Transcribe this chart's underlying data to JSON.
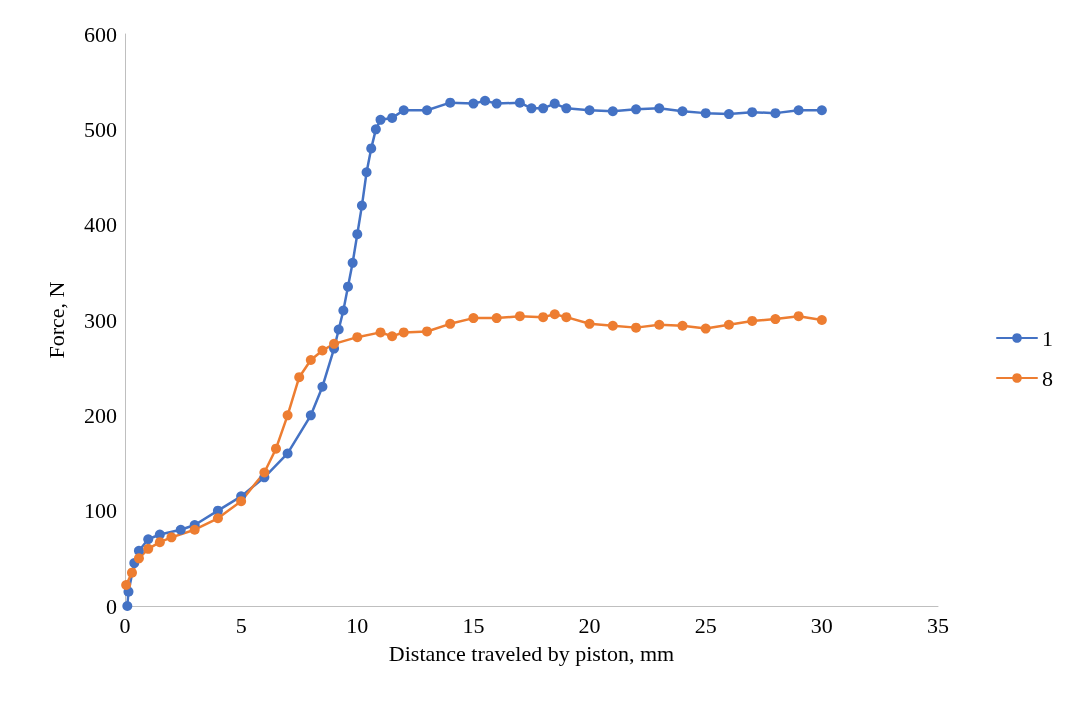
{
  "chart_data": {
    "type": "line",
    "xlabel": "Distance traveled by piston, mm",
    "ylabel": "Force, N",
    "xlim": [
      0,
      35
    ],
    "xticks": [
      0,
      5,
      10,
      15,
      20,
      25,
      30,
      35
    ],
    "ylim": [
      0,
      600
    ],
    "yticks": [
      0,
      100,
      200,
      300,
      400,
      500,
      600
    ],
    "grid": false,
    "legend": "right",
    "marker": "circle",
    "line_style": "solid",
    "series": [
      {
        "name": "1",
        "color": "#4472c4",
        "x": [
          0.1,
          0.15,
          0.4,
          0.6,
          1,
          1.5,
          2.4,
          3,
          4,
          5,
          6,
          7,
          8,
          8.5,
          9,
          9.2,
          9.4,
          9.6,
          9.8,
          10,
          10.2,
          10.4,
          10.6,
          10.8,
          11,
          11.5,
          12,
          13,
          14,
          15,
          15.5,
          16,
          17,
          17.5,
          18,
          18.5,
          19,
          20,
          21,
          22,
          23,
          24,
          25,
          26,
          27,
          28,
          29,
          30
        ],
        "values": [
          0,
          15,
          45,
          58,
          70,
          75,
          80,
          85,
          100,
          115,
          135,
          160,
          200,
          230,
          270,
          290,
          310,
          335,
          360,
          390,
          420,
          455,
          480,
          500,
          510,
          512,
          520,
          520,
          528,
          527,
          530,
          527,
          528,
          522,
          522,
          527,
          522,
          520,
          519,
          521,
          522,
          519,
          517,
          516,
          518,
          517,
          520,
          520
        ]
      },
      {
        "name": "8",
        "color": "#ed7d31",
        "x": [
          0.05,
          0.3,
          0.6,
          1,
          1.5,
          2,
          3,
          4,
          5,
          6,
          6.5,
          7,
          7.5,
          8,
          8.5,
          9,
          10,
          11,
          11.5,
          12,
          13,
          14,
          15,
          16,
          17,
          18,
          18.5,
          19,
          20,
          21,
          22,
          23,
          24,
          25,
          26,
          27,
          28,
          29,
          30
        ],
        "values": [
          22,
          35,
          50,
          60,
          67,
          72,
          80,
          92,
          110,
          140,
          165,
          200,
          240,
          258,
          268,
          275,
          282,
          287,
          283,
          287,
          288,
          296,
          302,
          302,
          304,
          303,
          306,
          303,
          296,
          294,
          292,
          295,
          294,
          291,
          295,
          299,
          301,
          304,
          300
        ]
      }
    ]
  }
}
